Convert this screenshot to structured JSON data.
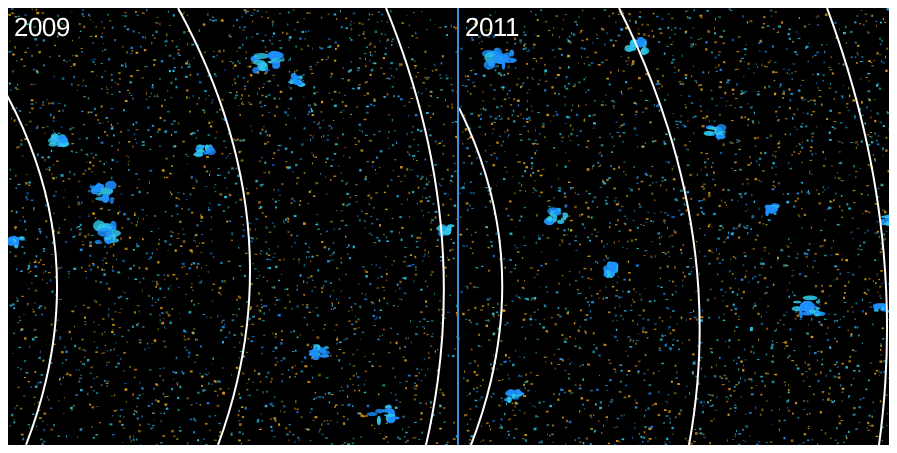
{
  "panels": [
    {
      "year": "2009"
    },
    {
      "year": "2011"
    }
  ],
  "colors": {
    "background": "#000000",
    "positive_blue": "#1e90ff",
    "positive_cyan": "#2fc7e8",
    "negative_yellow": "#e0a51a",
    "arc": "#ffffff",
    "divider": "#3f8fd8"
  }
}
